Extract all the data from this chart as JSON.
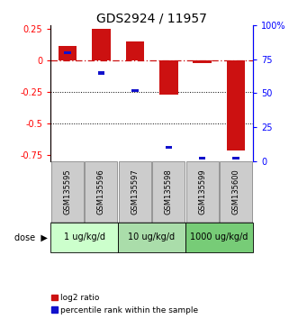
{
  "title": "GDS2924 / 11957",
  "samples": [
    "GSM135595",
    "GSM135596",
    "GSM135597",
    "GSM135598",
    "GSM135599",
    "GSM135600"
  ],
  "log2_ratio": [
    0.12,
    0.25,
    0.155,
    -0.27,
    -0.02,
    -0.72
  ],
  "percentile_rank": [
    80,
    65,
    52,
    10,
    2,
    2
  ],
  "dose_groups": [
    {
      "label": "1 ug/kg/d",
      "samples": [
        0,
        1
      ],
      "color": "#ccffcc"
    },
    {
      "label": "10 ug/kg/d",
      "samples": [
        2,
        3
      ],
      "color": "#aaddaa"
    },
    {
      "label": "1000 ug/kg/d",
      "samples": [
        4,
        5
      ],
      "color": "#77cc77"
    }
  ],
  "ylim": [
    -0.8,
    0.28
  ],
  "yticks_left": [
    0.25,
    0,
    -0.25,
    -0.5,
    -0.75
  ],
  "yticks_right_pct": [
    100,
    75,
    50,
    25,
    0
  ],
  "right_labels": [
    "100%",
    "75",
    "50",
    "25",
    "0"
  ],
  "bar_color": "#cc1111",
  "point_color": "#1111cc",
  "zero_line_color": "#cc1111",
  "dot_line_color": "#000000",
  "bg_color": "#ffffff",
  "sample_box_color": "#cccccc",
  "sample_box_edge": "#888888",
  "title_fontsize": 10,
  "tick_fontsize": 7,
  "sample_fontsize": 6,
  "dose_fontsize": 7,
  "legend_fontsize": 6.5
}
